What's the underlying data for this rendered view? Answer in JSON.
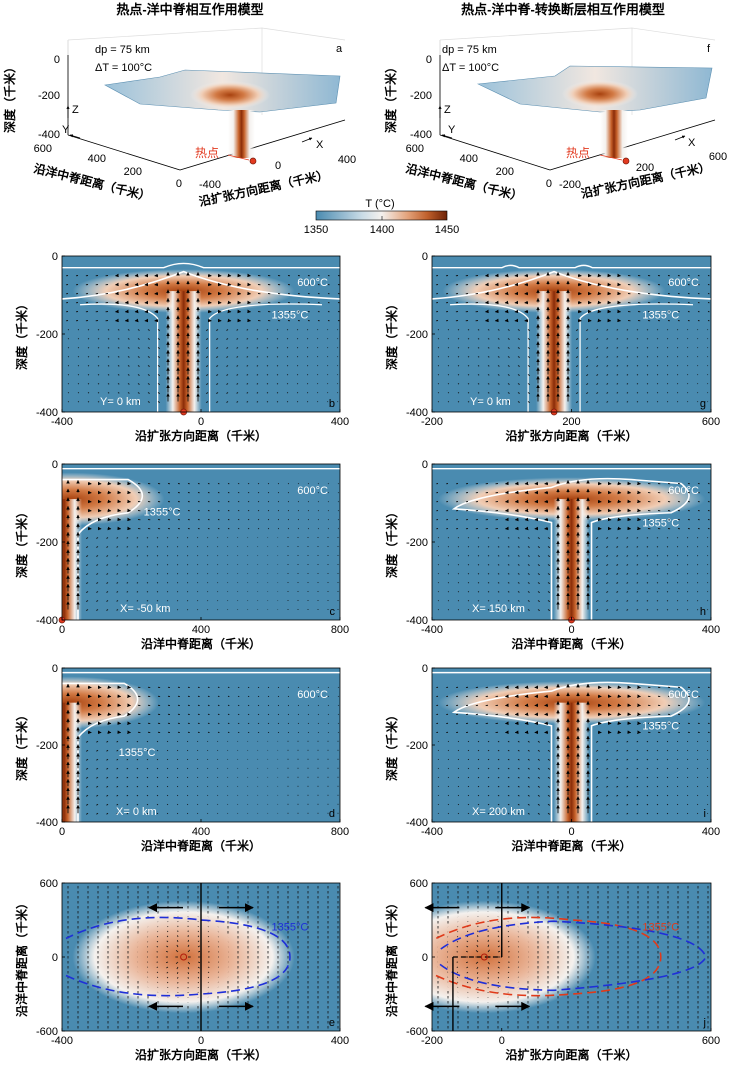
{
  "figure": {
    "title_left": "热点-洋中脊相互作用模型",
    "title_right": "热点-洋中脊-转换断层相互作用模型",
    "colorbar": {
      "title": "T (°C)",
      "ticks": [
        "1350",
        "1400",
        "1450"
      ],
      "colors": {
        "low": "#4a8bb0",
        "mid": "#f4f1ee",
        "high": "#7a2a08"
      }
    },
    "panels_3d": [
      {
        "letter": "a",
        "param1": "dp = 75 km",
        "param2": "ΔT = 100°C",
        "z_label": "深度（千米）",
        "z_ticks": [
          "0",
          "-200",
          "-400"
        ],
        "y_label": "沿洋中脊距离（千米）",
        "y_ticks": [
          "600",
          "400",
          "200",
          "0"
        ],
        "x_label": "沿扩张方向距离（千米）",
        "x_ticks": [
          "-400",
          "0",
          "400"
        ],
        "axis_z": "Z",
        "axis_y": "Y",
        "axis_x": "X",
        "hotspot_label": "热点"
      },
      {
        "letter": "f",
        "param1": "dp = 75 km",
        "param2": "ΔT = 100°C",
        "z_label": "深度（千米）",
        "z_ticks": [
          "0",
          "-200",
          "-400"
        ],
        "y_label": "沿洋中脊距离（千米）",
        "y_ticks": [
          "600",
          "400",
          "200",
          "0"
        ],
        "x_label": "沿扩张方向距离（千米）",
        "x_ticks": [
          "-200",
          "200",
          "600"
        ],
        "axis_z": "Z",
        "axis_y": "Y",
        "axis_x": "X",
        "hotspot_label": "热点"
      }
    ]
  },
  "chart_data": [
    {
      "id": "b",
      "type": "heatmap",
      "section": "Y= 0 km",
      "xlabel": "沿扩张方向距离（千米）",
      "ylabel": "深度（千米）",
      "xlim": [
        -400,
        400
      ],
      "ylim": [
        -400,
        0
      ],
      "xticks": [
        "-400",
        "0",
        "400"
      ],
      "yticks": [
        "0",
        "-200",
        "-400"
      ],
      "plume_center": -50,
      "isotherms": [
        "600°C",
        "1355°C"
      ]
    },
    {
      "id": "g",
      "type": "heatmap",
      "section": "Y= 0 km",
      "xlabel": "沿扩张方向距离（千米）",
      "ylabel": "深度（千米）",
      "xlim": [
        -200,
        600
      ],
      "ylim": [
        -400,
        0
      ],
      "xticks": [
        "-200",
        "200",
        "600"
      ],
      "yticks": [
        "0",
        "-200",
        "-400"
      ],
      "plume_center": 150,
      "isotherms": [
        "600°C",
        "1355°C"
      ]
    },
    {
      "id": "c",
      "type": "heatmap",
      "section": "X= -50 km",
      "xlabel": "沿洋中脊距离（千米）",
      "ylabel": "深度（千米）",
      "xlim": [
        0,
        800
      ],
      "ylim": [
        -400,
        0
      ],
      "xticks": [
        "0",
        "400",
        "800"
      ],
      "yticks": [
        "0",
        "-200",
        "-400"
      ],
      "plume_center": 0,
      "isotherms": [
        "600°C",
        "1355°C"
      ]
    },
    {
      "id": "h",
      "type": "heatmap",
      "section": "X= 150 km",
      "xlabel": "沿洋中脊距离（千米）",
      "ylabel": "深度（千米）",
      "xlim": [
        -400,
        400
      ],
      "ylim": [
        -400,
        0
      ],
      "xticks": [
        "-400",
        "0",
        "400"
      ],
      "yticks": [
        "0",
        "-200",
        "-400"
      ],
      "plume_center": 0,
      "isotherms": [
        "600°C",
        "1355°C"
      ]
    },
    {
      "id": "d",
      "type": "heatmap",
      "section": "X= 0 km",
      "xlabel": "沿洋中脊距离（千米）",
      "ylabel": "深度（千米）",
      "xlim": [
        0,
        800
      ],
      "ylim": [
        -400,
        0
      ],
      "xticks": [
        "0",
        "400",
        "800"
      ],
      "yticks": [
        "0",
        "-200",
        "-400"
      ],
      "plume_center": 0,
      "isotherms": [
        "600°C",
        "1355°C"
      ]
    },
    {
      "id": "i",
      "type": "heatmap",
      "section": "X= 200 km",
      "xlabel": "沿洋中脊距离（千米）",
      "ylabel": "深度（千米）",
      "xlim": [
        -400,
        400
      ],
      "ylim": [
        -400,
        0
      ],
      "xticks": [
        "-400",
        "0",
        "400"
      ],
      "yticks": [
        "0",
        "-200",
        "-400"
      ],
      "plume_center": 0,
      "isotherms": [
        "600°C",
        "1355°C"
      ]
    },
    {
      "id": "e",
      "type": "heatmap",
      "view": "map",
      "xlabel": "沿扩张方向距离（千米）",
      "ylabel": "沿洋中脊距离（千米）",
      "xlim": [
        -400,
        400
      ],
      "ylim": [
        -600,
        600
      ],
      "xticks": [
        "-400",
        "0",
        "400"
      ],
      "yticks": [
        "600",
        "0",
        "-600"
      ],
      "hotspot": [
        -50,
        0
      ],
      "contour_label": "1355°C",
      "contour_color": "#1f2fd8"
    },
    {
      "id": "j",
      "type": "heatmap",
      "view": "map",
      "xlabel": "沿扩张方向距离（千米）",
      "ylabel": "沿洋中脊距离（千米）",
      "xlim": [
        -200,
        600
      ],
      "ylim": [
        -600,
        600
      ],
      "xticks": [
        "-200",
        "0",
        "600"
      ],
      "yticks": [
        "600",
        "0",
        "-600"
      ],
      "hotspot": [
        -50,
        0
      ],
      "contour_label": "1355°C",
      "contour_color": "#e03a1a"
    }
  ]
}
